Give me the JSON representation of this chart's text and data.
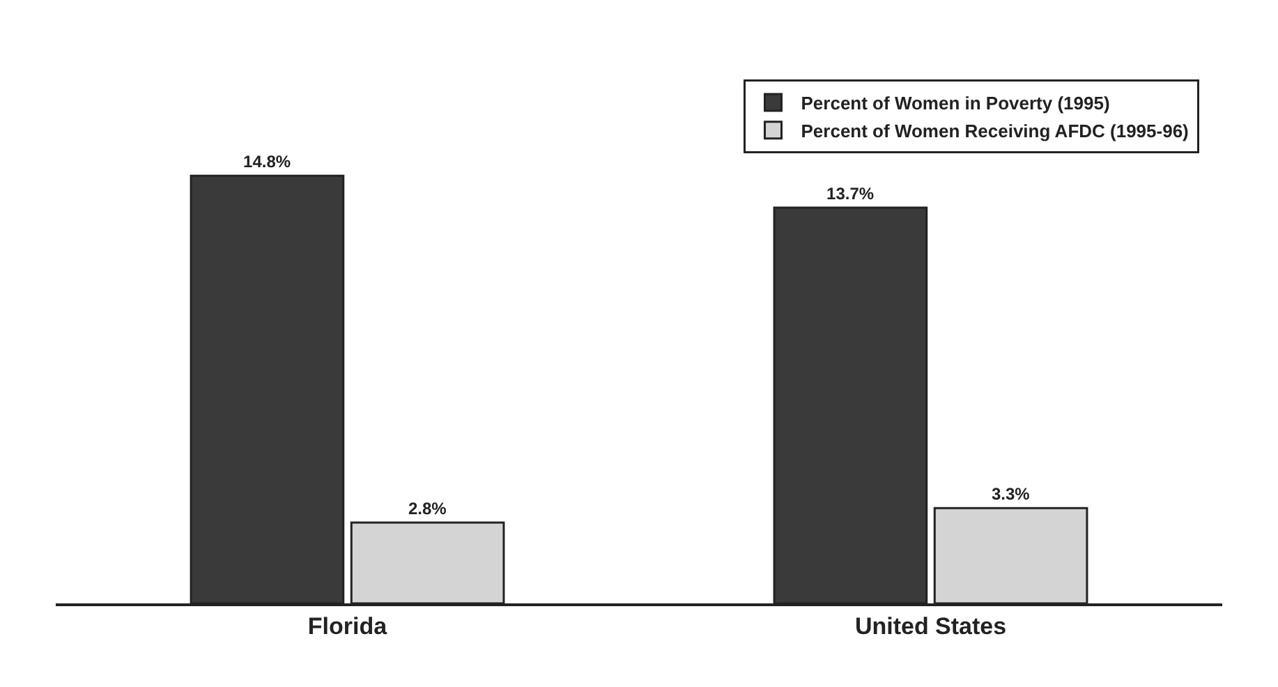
{
  "chart_data": {
    "type": "bar",
    "categories": [
      "Florida",
      "United States"
    ],
    "series": [
      {
        "name": "Percent of Women in Poverty (1995)",
        "color": "#3a3a3a",
        "values": [
          14.8,
          13.7
        ],
        "value_labels": [
          "14.8%",
          "13.7%"
        ]
      },
      {
        "name": "Percent of Women Receiving AFDC (1995-96)",
        "color": "#d4d4d4",
        "values": [
          2.8,
          3.3
        ],
        "value_labels": [
          "2.8%",
          "3.3%"
        ]
      }
    ],
    "legend": "top right"
  }
}
